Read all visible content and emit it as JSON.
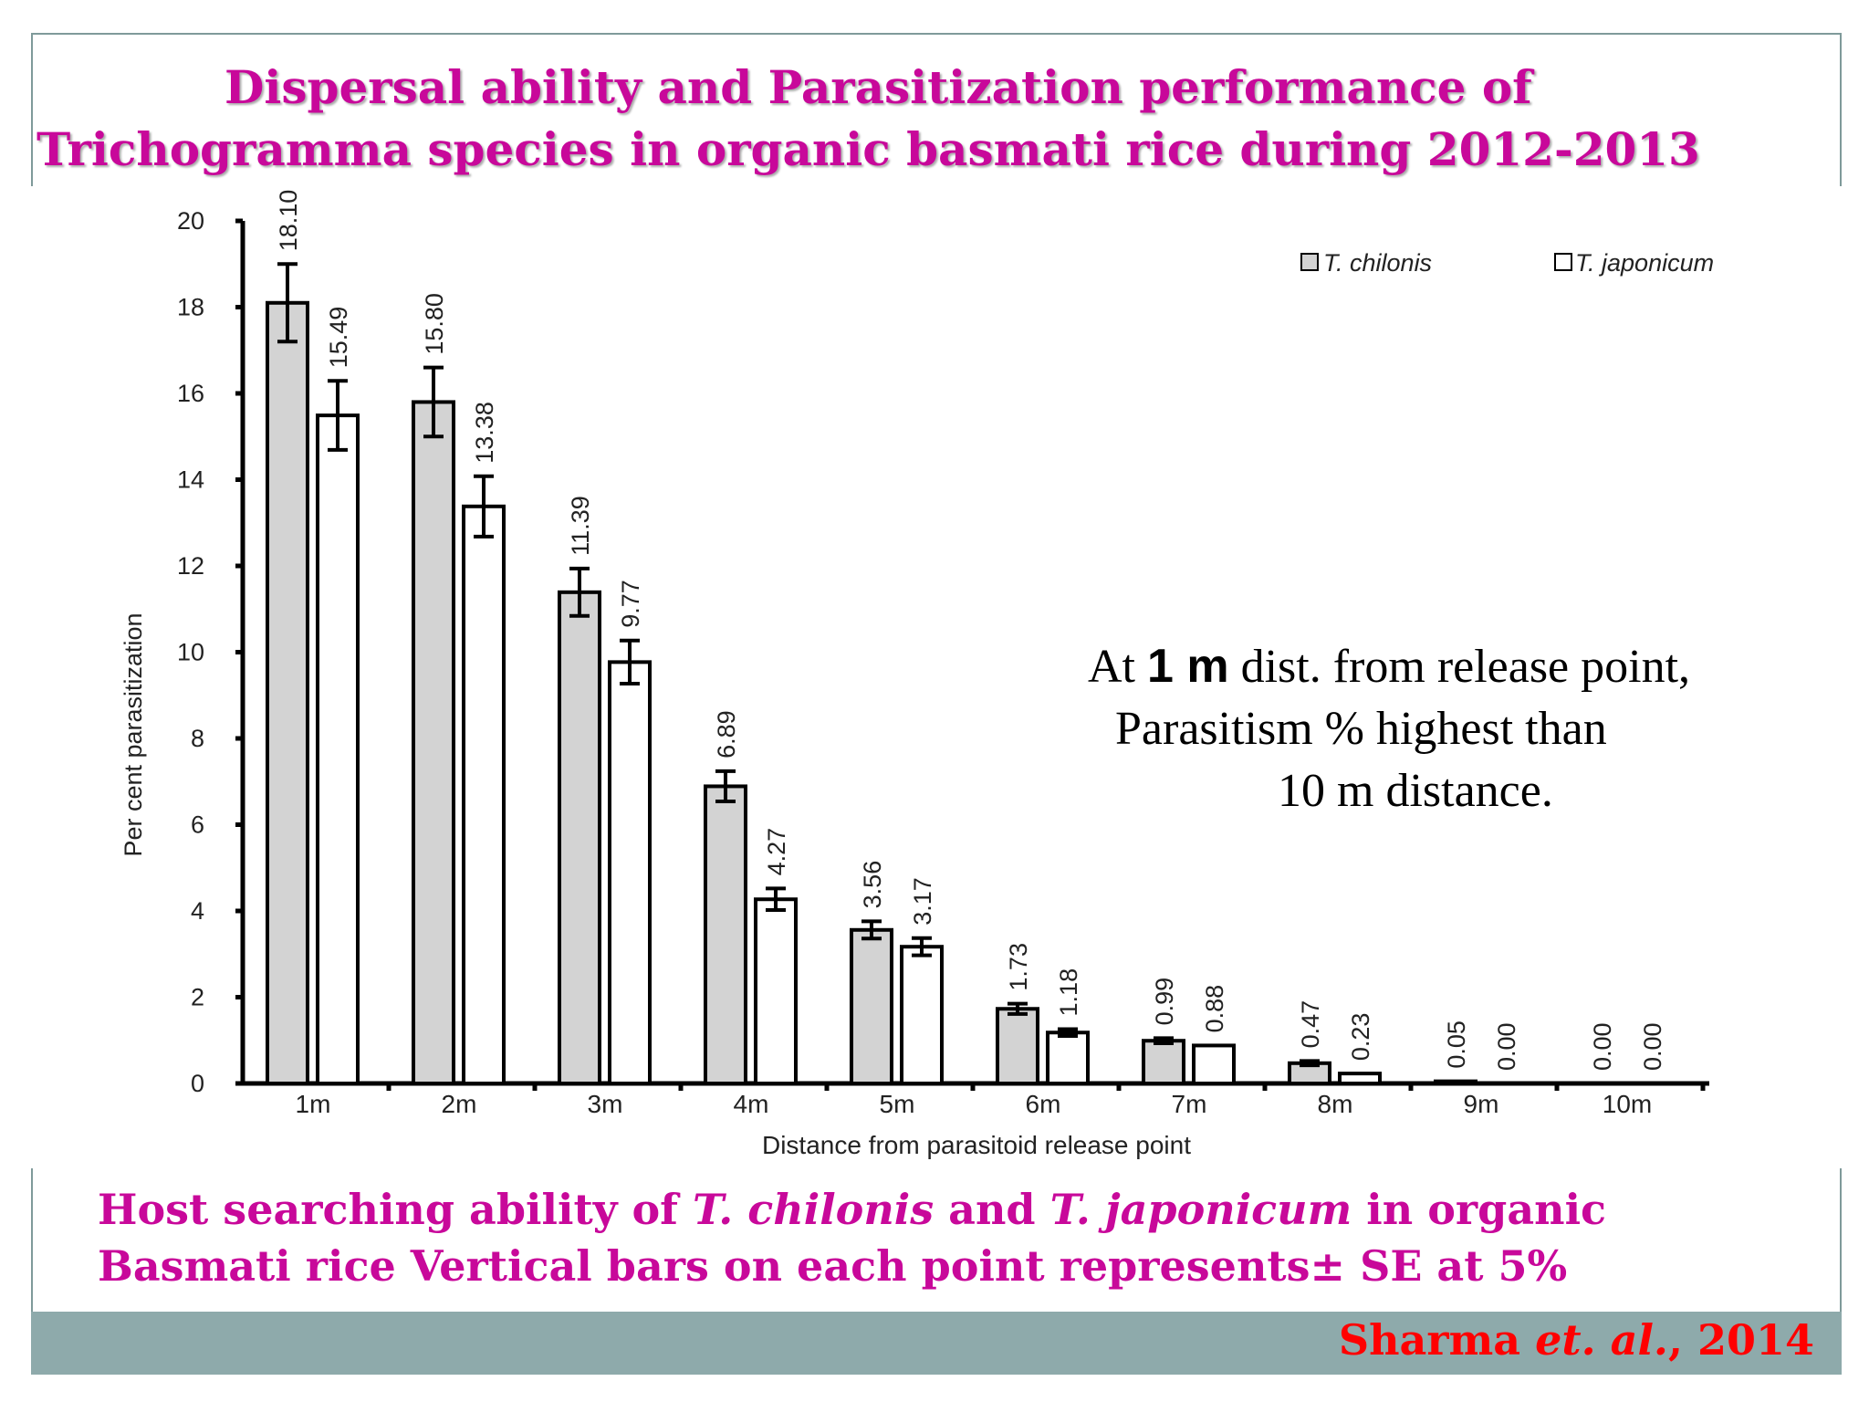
{
  "title": {
    "line1": "Dispersal ability and Parasitization performance of",
    "line2": "Trichogramma species in organic basmati rice during 2012-2013"
  },
  "annotation": {
    "line1_pre": "At ",
    "line1_bold": "1 m",
    "line1_post": " dist. from release point,",
    "line2": "Parasitism % highest than",
    "line3": "10 m distance."
  },
  "caption": {
    "line1_a": "Host searching ability of ",
    "line1_b": "T. chilonis",
    "line1_c": " and ",
    "line1_d": "T. japonicum",
    "line1_e": " in organic",
    "line2": "Basmati rice Vertical bars on each point represents± SE at 5%"
  },
  "citation": {
    "author": "Sharma ",
    "etal": "et. al.",
    "year": ", 2014"
  },
  "colors": {
    "title": "#c8089a",
    "citation": "#ff0000",
    "footer": "#8eaaab",
    "chilonis_fill": "#d3d3d3",
    "japonicum_fill": "#ffffff"
  },
  "chart_data": {
    "type": "bar",
    "xlabel": "Distance from parasitoid release point",
    "ylabel": "Per cent parasitization",
    "ylim": [
      0,
      20
    ],
    "yticks": [
      0,
      2,
      4,
      6,
      8,
      10,
      12,
      14,
      16,
      18,
      20
    ],
    "categories": [
      "1m",
      "2m",
      "3m",
      "4m",
      "5m",
      "6m",
      "7m",
      "8m",
      "9m",
      "10m"
    ],
    "legend_position": "top-right",
    "grid": false,
    "series": [
      {
        "name": "T. chilonis",
        "values": [
          18.1,
          15.8,
          11.39,
          6.89,
          3.56,
          1.73,
          0.99,
          0.47,
          0.05,
          0.0
        ],
        "labels": [
          "18.10",
          "15.80",
          "11.39",
          "6.89",
          "3.56",
          "1.73",
          "0.99",
          "0.47",
          "0.05",
          "0.00"
        ],
        "se": [
          0.9,
          0.8,
          0.55,
          0.35,
          0.2,
          0.12,
          0.06,
          0.05,
          0,
          0
        ]
      },
      {
        "name": "T. japonicum",
        "values": [
          15.49,
          13.38,
          9.77,
          4.27,
          3.17,
          1.18,
          0.88,
          0.23,
          0.0,
          0.0
        ],
        "labels": [
          "15.49",
          "13.38",
          "9.77",
          "4.27",
          "3.17",
          "1.18",
          "0.88",
          "0.23",
          "0.00",
          "0.00"
        ],
        "se": [
          0.8,
          0.7,
          0.5,
          0.25,
          0.2,
          0.08,
          0,
          0,
          0,
          0
        ]
      }
    ]
  }
}
